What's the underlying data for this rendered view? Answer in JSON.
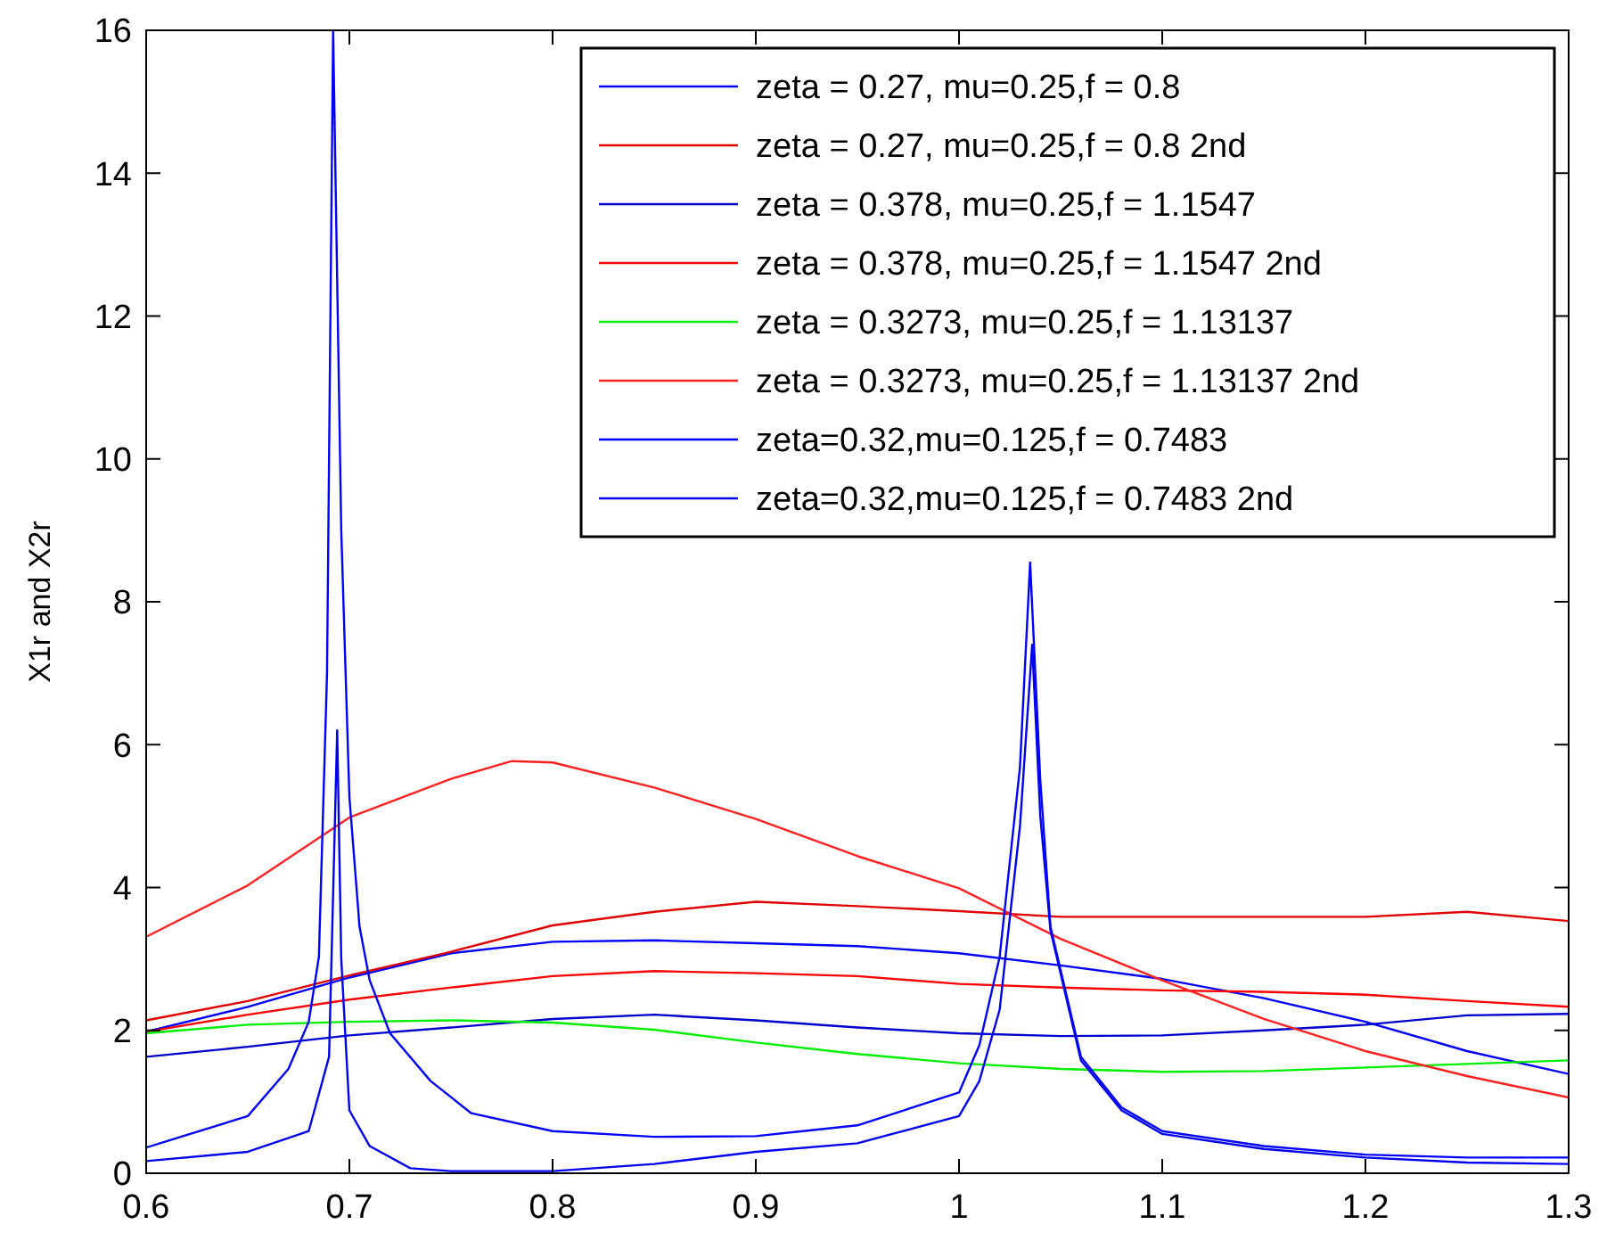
{
  "chart_data": {
    "type": "line",
    "ylabel": "X1r and X2r",
    "xlim": [
      0.6,
      1.3
    ],
    "ylim": [
      0,
      16
    ],
    "xticks": [
      0.6,
      0.7,
      0.8,
      0.9,
      1,
      1.1,
      1.2,
      1.3
    ],
    "yticks": [
      0,
      2,
      4,
      6,
      8,
      10,
      12,
      14,
      16
    ],
    "grid": false,
    "legend": "top right",
    "marker": "none",
    "line_style": "solid",
    "series": [
      {
        "name": "zeta = 0.27, mu=0.25,f = 0.8",
        "color": "#0000ff",
        "x": [
          0.6,
          0.65,
          0.7,
          0.75,
          0.8,
          0.85,
          0.9,
          0.95,
          1.0,
          1.05,
          1.1,
          1.15,
          1.2,
          1.25,
          1.3
        ],
        "values": [
          1.98,
          2.33,
          2.74,
          3.08,
          3.24,
          3.26,
          3.22,
          3.18,
          3.08,
          2.91,
          2.72,
          2.45,
          2.12,
          1.71,
          1.39
        ]
      },
      {
        "name": "zeta = 0.27, mu=0.25,f = 0.8 2nd",
        "color": "#e00000",
        "x": [
          0.6,
          0.65,
          0.7,
          0.75,
          0.8,
          0.85,
          0.9,
          0.95,
          1.0,
          1.05,
          1.1,
          1.15,
          1.2,
          1.25,
          1.3
        ],
        "values": [
          2.14,
          2.41,
          2.77,
          3.1,
          3.47,
          3.66,
          3.8,
          3.74,
          3.67,
          3.59,
          3.59,
          3.59,
          3.59,
          3.66,
          3.53
        ]
      },
      {
        "name": "zeta = 0.378, mu=0.25,f = 1.1547",
        "color": "#0000cc",
        "x": [
          0.6,
          0.65,
          0.7,
          0.75,
          0.8,
          0.85,
          0.9,
          0.95,
          1.0,
          1.05,
          1.1,
          1.15,
          1.2,
          1.25,
          1.3
        ],
        "values": [
          1.63,
          1.77,
          1.93,
          2.04,
          2.16,
          2.22,
          2.14,
          2.04,
          1.96,
          1.92,
          1.93,
          2.0,
          2.08,
          2.21,
          2.23
        ]
      },
      {
        "name": "zeta = 0.378, mu=0.25,f = 1.1547 2nd",
        "color": "#ff0000",
        "x": [
          0.6,
          0.65,
          0.7,
          0.75,
          0.8,
          0.85,
          0.9,
          0.95,
          1.0,
          1.05,
          1.1,
          1.15,
          1.2,
          1.25,
          1.3
        ],
        "values": [
          1.98,
          2.22,
          2.43,
          2.6,
          2.76,
          2.83,
          2.8,
          2.76,
          2.65,
          2.6,
          2.56,
          2.54,
          2.5,
          2.41,
          2.33
        ]
      },
      {
        "name": "zeta = 0.3273, mu=0.25,f = 1.13137",
        "color": "#00ee00",
        "x": [
          0.6,
          0.65,
          0.7,
          0.75,
          0.8,
          0.85,
          0.9,
          0.95,
          1.0,
          1.05,
          1.1,
          1.15,
          1.2,
          1.25,
          1.3
        ],
        "values": [
          1.96,
          2.08,
          2.12,
          2.14,
          2.11,
          2.01,
          1.83,
          1.67,
          1.54,
          1.46,
          1.42,
          1.43,
          1.48,
          1.53,
          1.58
        ]
      },
      {
        "name": "zeta = 0.3273, mu=0.25,f = 1.13137 2nd",
        "color": "#ff2020",
        "x": [
          0.6,
          0.65,
          0.7,
          0.75,
          0.78,
          0.8,
          0.85,
          0.9,
          0.95,
          1.0,
          1.05,
          1.1,
          1.15,
          1.2,
          1.25,
          1.3
        ],
        "values": [
          3.31,
          4.03,
          4.98,
          5.52,
          5.77,
          5.75,
          5.4,
          4.96,
          4.44,
          3.99,
          3.28,
          2.7,
          2.16,
          1.71,
          1.36,
          1.06
        ]
      },
      {
        "name": "zeta=0.32,mu=0.125,f = 0.7483",
        "color": "#0000ff",
        "x": [
          0.6,
          0.65,
          0.67,
          0.68,
          0.685,
          0.689,
          0.692,
          0.696,
          0.7,
          0.705,
          0.71,
          0.72,
          0.74,
          0.76,
          0.8,
          0.85,
          0.9,
          0.95,
          1.0,
          1.01,
          1.02,
          1.03,
          1.035,
          1.04,
          1.045,
          1.06,
          1.08,
          1.1,
          1.15,
          1.2,
          1.25,
          1.3
        ],
        "values": [
          0.36,
          0.8,
          1.46,
          2.12,
          3.03,
          7.0,
          16,
          9.0,
          5.27,
          3.45,
          2.7,
          1.96,
          1.29,
          0.84,
          0.59,
          0.51,
          0.52,
          0.67,
          1.13,
          1.79,
          3.03,
          5.69,
          8.55,
          5.5,
          3.45,
          1.63,
          0.92,
          0.59,
          0.38,
          0.26,
          0.22,
          0.22
        ]
      },
      {
        "name": "zeta=0.32,mu=0.125,f = 0.7483 2nd",
        "color": "#0000ee",
        "x": [
          0.6,
          0.65,
          0.68,
          0.69,
          0.694,
          0.696,
          0.7,
          0.71,
          0.73,
          0.75,
          0.8,
          0.85,
          0.9,
          0.95,
          1.0,
          1.01,
          1.02,
          1.03,
          1.036,
          1.04,
          1.045,
          1.06,
          1.08,
          1.1,
          1.15,
          1.2,
          1.25,
          1.3
        ],
        "values": [
          0.17,
          0.3,
          0.59,
          1.63,
          6.2,
          3.0,
          0.88,
          0.38,
          0.07,
          0.03,
          0.03,
          0.13,
          0.3,
          0.42,
          0.8,
          1.29,
          2.29,
          4.86,
          7.4,
          5.0,
          3.4,
          1.58,
          0.88,
          0.55,
          0.34,
          0.22,
          0.15,
          0.13
        ]
      }
    ]
  }
}
